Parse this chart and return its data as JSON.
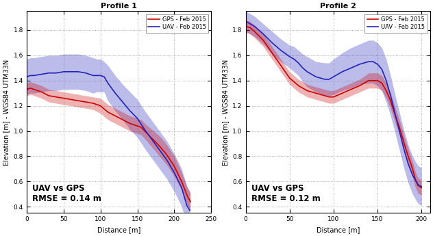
{
  "profile1": {
    "title": "Profile 1",
    "xlabel": "Distance [m]",
    "ylabel": "Elevation [m] - WGS84 UTM33N",
    "xlim": [
      0,
      250
    ],
    "ylim": [
      0.35,
      1.95
    ],
    "yticks": [
      0.4,
      0.6,
      0.8,
      1.0,
      1.2,
      1.4,
      1.6,
      1.8
    ],
    "xticks": [
      0,
      50,
      100,
      150,
      200,
      250
    ],
    "rmse_text": "UAV vs GPS\nRMSE = 0.14 m",
    "gps_color": "#cc0000",
    "uav_color": "#2222bb",
    "gps_fill_alpha": 0.3,
    "uav_fill_alpha": 0.3,
    "gps_x": [
      0,
      5,
      10,
      20,
      30,
      40,
      50,
      60,
      70,
      80,
      90,
      100,
      110,
      120,
      130,
      140,
      150,
      155,
      160,
      170,
      180,
      190,
      200,
      210,
      218,
      222
    ],
    "gps_y": [
      1.33,
      1.34,
      1.33,
      1.31,
      1.28,
      1.27,
      1.26,
      1.25,
      1.24,
      1.23,
      1.22,
      1.2,
      1.15,
      1.12,
      1.09,
      1.06,
      1.04,
      1.03,
      1.0,
      0.94,
      0.88,
      0.81,
      0.72,
      0.6,
      0.48,
      0.44
    ],
    "gps_upper": [
      1.38,
      1.39,
      1.38,
      1.36,
      1.33,
      1.32,
      1.31,
      1.3,
      1.29,
      1.28,
      1.27,
      1.26,
      1.21,
      1.18,
      1.15,
      1.12,
      1.1,
      1.09,
      1.06,
      1.01,
      0.96,
      0.89,
      0.8,
      0.67,
      0.55,
      0.51
    ],
    "gps_lower": [
      1.28,
      1.29,
      1.28,
      1.26,
      1.23,
      1.22,
      1.21,
      1.2,
      1.19,
      1.18,
      1.17,
      1.14,
      1.09,
      1.06,
      1.03,
      1.0,
      0.98,
      0.97,
      0.94,
      0.87,
      0.8,
      0.73,
      0.64,
      0.53,
      0.41,
      0.37
    ],
    "uav_x": [
      0,
      5,
      10,
      20,
      30,
      40,
      50,
      55,
      60,
      70,
      80,
      85,
      90,
      95,
      100,
      105,
      110,
      120,
      130,
      140,
      150,
      160,
      170,
      180,
      190,
      200,
      210,
      217,
      221
    ],
    "uav_y": [
      1.43,
      1.44,
      1.44,
      1.45,
      1.46,
      1.46,
      1.47,
      1.47,
      1.47,
      1.47,
      1.46,
      1.45,
      1.44,
      1.44,
      1.44,
      1.43,
      1.38,
      1.3,
      1.23,
      1.16,
      1.1,
      1.01,
      0.93,
      0.85,
      0.77,
      0.67,
      0.55,
      0.41,
      0.37
    ],
    "uav_upper": [
      1.57,
      1.58,
      1.58,
      1.59,
      1.6,
      1.6,
      1.61,
      1.61,
      1.61,
      1.61,
      1.6,
      1.59,
      1.58,
      1.57,
      1.57,
      1.55,
      1.52,
      1.44,
      1.37,
      1.31,
      1.25,
      1.16,
      1.08,
      1.0,
      0.92,
      0.82,
      0.7,
      0.56,
      0.52
    ],
    "uav_lower": [
      1.29,
      1.3,
      1.3,
      1.31,
      1.32,
      1.32,
      1.33,
      1.33,
      1.33,
      1.33,
      1.32,
      1.31,
      1.3,
      1.31,
      1.31,
      1.31,
      1.24,
      1.16,
      1.09,
      1.01,
      0.95,
      0.86,
      0.78,
      0.7,
      0.62,
      0.52,
      0.4,
      0.26,
      0.22
    ]
  },
  "profile2": {
    "title": "Profile 2",
    "xlabel": "Distance [m]",
    "ylabel": "Elevation [m] - WGS84 UTM33N",
    "xlim": [
      0,
      210
    ],
    "ylim": [
      0.35,
      1.95
    ],
    "yticks": [
      0.4,
      0.6,
      0.8,
      1.0,
      1.2,
      1.4,
      1.6,
      1.8
    ],
    "xticks": [
      0,
      50,
      100,
      150,
      200
    ],
    "rmse_text": "UAV vs GPS\nRMSE = 0.12 m",
    "gps_color": "#cc0000",
    "uav_color": "#2222bb",
    "gps_fill_alpha": 0.3,
    "uav_fill_alpha": 0.3,
    "gps_x": [
      0,
      5,
      10,
      20,
      30,
      40,
      50,
      60,
      70,
      80,
      90,
      95,
      100,
      110,
      120,
      130,
      140,
      145,
      150,
      155,
      160,
      165,
      170,
      175,
      180,
      185,
      190,
      193,
      196,
      200
    ],
    "gps_y": [
      1.83,
      1.82,
      1.79,
      1.72,
      1.62,
      1.52,
      1.42,
      1.36,
      1.32,
      1.3,
      1.28,
      1.27,
      1.27,
      1.3,
      1.33,
      1.36,
      1.4,
      1.4,
      1.4,
      1.38,
      1.32,
      1.24,
      1.13,
      1.03,
      0.91,
      0.8,
      0.7,
      0.62,
      0.57,
      0.55
    ],
    "gps_upper": [
      1.88,
      1.87,
      1.84,
      1.77,
      1.67,
      1.57,
      1.47,
      1.41,
      1.37,
      1.35,
      1.33,
      1.32,
      1.32,
      1.35,
      1.38,
      1.41,
      1.46,
      1.46,
      1.46,
      1.44,
      1.38,
      1.3,
      1.19,
      1.09,
      0.97,
      0.86,
      0.76,
      0.68,
      0.63,
      0.61
    ],
    "gps_lower": [
      1.78,
      1.77,
      1.74,
      1.67,
      1.57,
      1.47,
      1.37,
      1.31,
      1.27,
      1.25,
      1.23,
      1.22,
      1.22,
      1.25,
      1.28,
      1.31,
      1.34,
      1.34,
      1.34,
      1.32,
      1.26,
      1.18,
      1.07,
      0.97,
      0.85,
      0.74,
      0.64,
      0.56,
      0.51,
      0.49
    ],
    "uav_x": [
      0,
      5,
      10,
      20,
      30,
      40,
      50,
      55,
      60,
      65,
      70,
      80,
      90,
      95,
      100,
      110,
      120,
      130,
      140,
      145,
      150,
      155,
      160,
      165,
      170,
      175,
      180,
      185,
      190,
      194,
      197,
      200
    ],
    "uav_y": [
      1.87,
      1.85,
      1.83,
      1.77,
      1.7,
      1.64,
      1.59,
      1.57,
      1.54,
      1.5,
      1.47,
      1.43,
      1.41,
      1.41,
      1.43,
      1.47,
      1.5,
      1.53,
      1.55,
      1.55,
      1.53,
      1.49,
      1.4,
      1.28,
      1.14,
      1.0,
      0.86,
      0.74,
      0.65,
      0.6,
      0.57,
      0.56
    ],
    "uav_upper": [
      1.95,
      1.93,
      1.91,
      1.85,
      1.79,
      1.73,
      1.68,
      1.67,
      1.64,
      1.61,
      1.59,
      1.55,
      1.54,
      1.54,
      1.57,
      1.62,
      1.66,
      1.69,
      1.72,
      1.72,
      1.7,
      1.66,
      1.57,
      1.44,
      1.29,
      1.15,
      1.01,
      0.89,
      0.8,
      0.75,
      0.72,
      0.71
    ],
    "uav_lower": [
      1.79,
      1.77,
      1.75,
      1.69,
      1.61,
      1.55,
      1.5,
      1.47,
      1.44,
      1.39,
      1.35,
      1.31,
      1.28,
      1.28,
      1.29,
      1.32,
      1.34,
      1.37,
      1.38,
      1.38,
      1.36,
      1.32,
      1.23,
      1.12,
      0.99,
      0.85,
      0.71,
      0.59,
      0.5,
      0.45,
      0.42,
      0.41
    ]
  },
  "bg_color": "#ffffff",
  "grid_color": "#999999",
  "legend_gps_label": "GPS - Feb 2015",
  "legend_uav_label": "UAV - Feb 2015",
  "line_width": 1.2,
  "font_size_title": 8,
  "font_size_label": 7,
  "font_size_tick": 6.5,
  "font_size_legend": 6,
  "font_size_annotation": 8.5
}
